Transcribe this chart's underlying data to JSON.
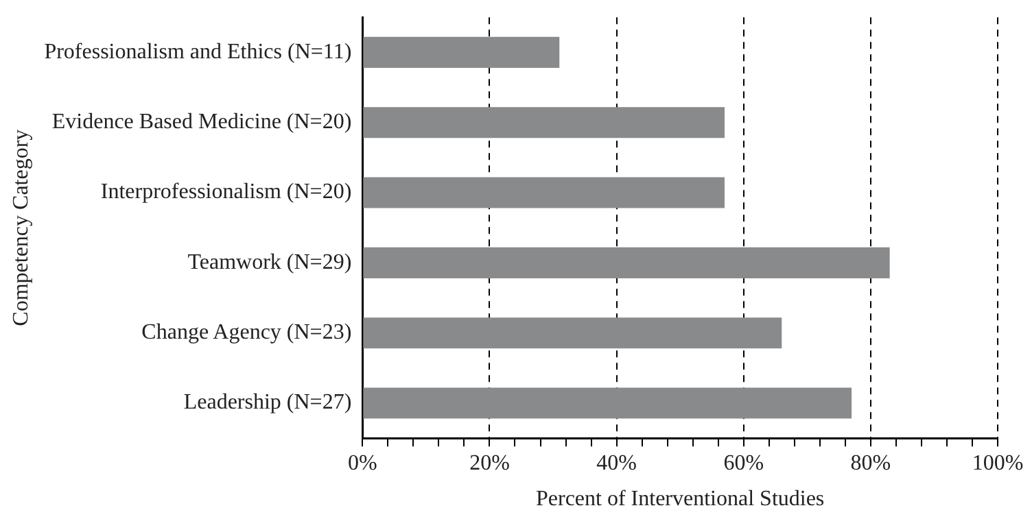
{
  "chart_data": {
    "type": "bar",
    "orientation": "horizontal",
    "xlabel": "Percent of Interventional Studies",
    "ylabel": "Competency Category",
    "categories": [
      "Professionalism and Ethics (N=11)",
      "Evidence Based Medicine (N=20)",
      "Interprofessionalism (N=20)",
      "Teamwork (N=29)",
      "Change Agency (N=23)",
      "Leadership (N=27)"
    ],
    "values": [
      31,
      57,
      57,
      83,
      66,
      77
    ],
    "color": "#898a8c",
    "xlim": [
      0,
      100
    ],
    "xticks": [
      {
        "value": 0,
        "label": "0%"
      },
      {
        "value": 4,
        "label": null
      },
      {
        "value": 8,
        "label": null
      },
      {
        "value": 12,
        "label": null
      },
      {
        "value": 16,
        "label": null
      },
      {
        "value": 20,
        "label": "20%"
      },
      {
        "value": 24,
        "label": null
      },
      {
        "value": 28,
        "label": null
      },
      {
        "value": 32,
        "label": null
      },
      {
        "value": 36,
        "label": null
      },
      {
        "value": 40,
        "label": "40%"
      },
      {
        "value": 44,
        "label": null
      },
      {
        "value": 48,
        "label": null
      },
      {
        "value": 52,
        "label": null
      },
      {
        "value": 56,
        "label": null
      },
      {
        "value": 60,
        "label": "60%"
      },
      {
        "value": 64,
        "label": null
      },
      {
        "value": 68,
        "label": null
      },
      {
        "value": 72,
        "label": null
      },
      {
        "value": 76,
        "label": null
      },
      {
        "value": 80,
        "label": "80%"
      },
      {
        "value": 84,
        "label": null
      },
      {
        "value": 88,
        "label": null
      },
      {
        "value": 92,
        "label": null
      },
      {
        "value": 96,
        "label": null
      },
      {
        "value": 100,
        "label": "100%"
      }
    ],
    "grid": "x",
    "line_style": "dashed",
    "legend": false
  }
}
